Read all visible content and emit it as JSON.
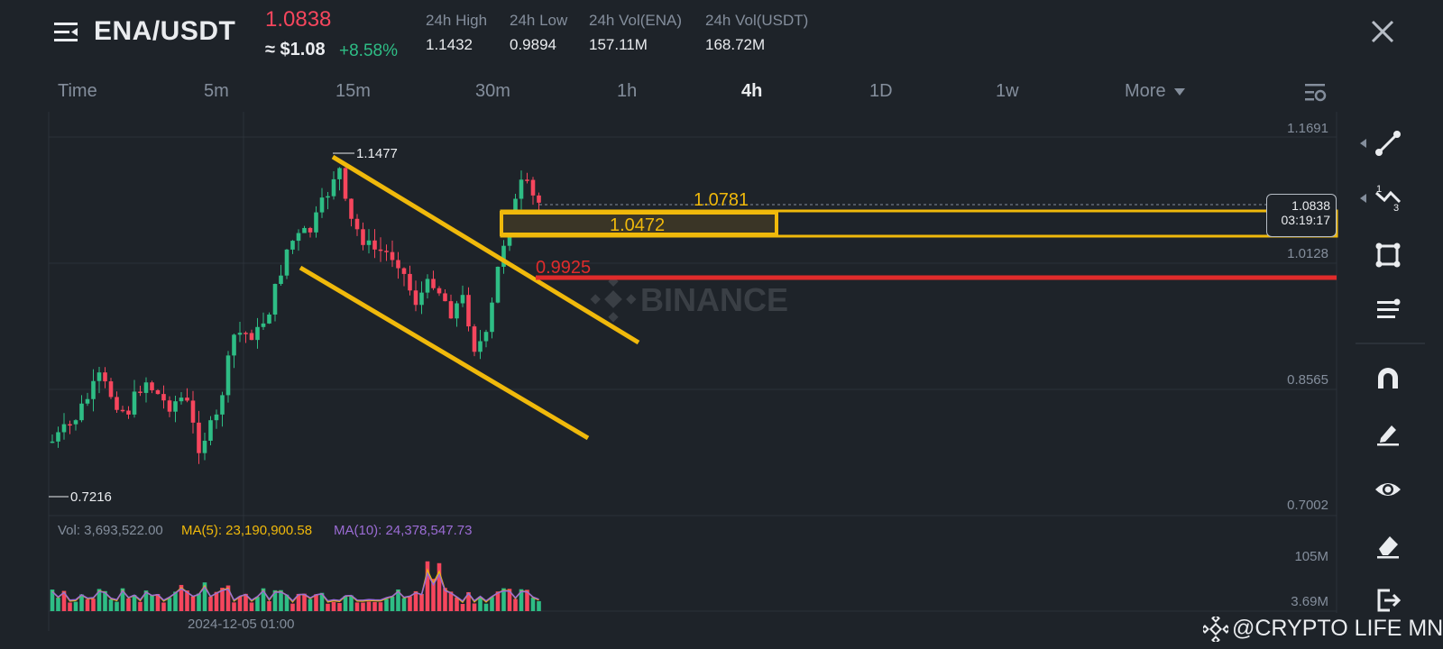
{
  "header": {
    "pair": "ENA/USDT",
    "last_price": "1.0838",
    "approx_usd": "≈ $1.08",
    "change_pct": "+8.58%",
    "stats": [
      {
        "label": "24h High",
        "value": "1.1432"
      },
      {
        "label": "24h Low",
        "value": "0.9894"
      },
      {
        "label": "24h Vol(ENA)",
        "value": "157.11M"
      },
      {
        "label": "24h Vol(USDT)",
        "value": "168.72M"
      }
    ]
  },
  "timeframes": [
    {
      "label": "Time",
      "active": false
    },
    {
      "label": "5m",
      "active": false
    },
    {
      "label": "15m",
      "active": false
    },
    {
      "label": "30m",
      "active": false
    },
    {
      "label": "1h",
      "active": false
    },
    {
      "label": "4h",
      "active": true
    },
    {
      "label": "1D",
      "active": false
    },
    {
      "label": "1w",
      "active": false
    },
    {
      "label": "More",
      "active": false
    }
  ],
  "chart": {
    "watermark": "BINANCE",
    "y_axis_labels": [
      "1.1691",
      "1.0128",
      "0.8565",
      "0.7002"
    ],
    "high_marker": "1.1477",
    "low_marker": "0.7216",
    "level_1": "1.0781",
    "level_2": "1.0472",
    "level_red": "0.9925",
    "current_price_tag": "1.0838",
    "countdown": "03:19:17",
    "x_axis_label": "2024-12-05 01:00",
    "colors": {
      "up": "#2ebd85",
      "down": "#f6465d",
      "drawing": "#f0b90b",
      "red_line": "#e02b2b",
      "ma5": "#f0b90b",
      "ma10": "#9b6cd4"
    }
  },
  "volume": {
    "vol": "Vol: 3,693,522.00",
    "ma5": "MA(5): 23,190,900.58",
    "ma10": "MA(10): 24,378,547.73",
    "axis_top": "105M",
    "axis_bottom": "3.69M"
  },
  "tools": [
    "trend-line-icon",
    "fibonacci-icon",
    "rectangle-icon",
    "parallel-channel-icon",
    "magnet-icon",
    "pencil-icon",
    "eye-icon",
    "eraser-icon",
    "exit-icon"
  ],
  "footer": {
    "credit": "@CRYPTO LIFE MNE"
  }
}
